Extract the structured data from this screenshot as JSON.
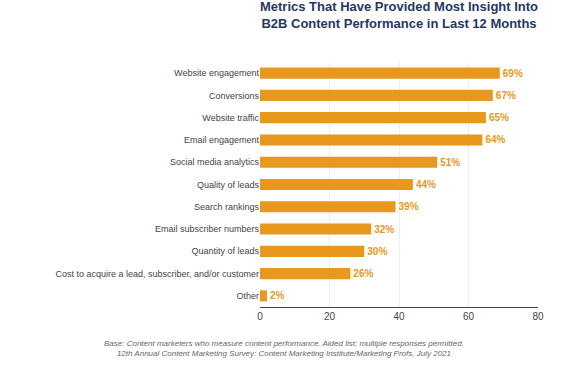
{
  "chart_data": {
    "type": "bar",
    "orientation": "horizontal",
    "title": "Metrics That Have Provided Most Insight Into\nB2B Content Performance in Last 12 Months",
    "categories": [
      "Other",
      "Cost to acquire a lead, subscriber, and/or customer",
      "Quantity of leads",
      "Email subscriber numbers",
      "Search rankings",
      "Quality of leads",
      "Social media analytics",
      "Email engagement",
      "Website traffic",
      "Conversions",
      "Website engagement"
    ],
    "values": [
      2,
      26,
      30,
      32,
      39,
      44,
      51,
      64,
      65,
      67,
      69
    ],
    "value_labels": [
      "2%",
      "26%",
      "30%",
      "32%",
      "39%",
      "44%",
      "51%",
      "64%",
      "65%",
      "67%",
      "69%"
    ],
    "data_labels": true,
    "color": "#E8981D",
    "xlim": [
      0,
      80
    ],
    "xticks": [
      0,
      20,
      40,
      60,
      80
    ],
    "grid": true,
    "annotations": [
      "Base: Content marketers who measure content performance. Aided list; multiple responses permitted.",
      "12th Annual Content Marketing Survey: Content Marketing Institute/Marketing Profs, July 2021"
    ]
  }
}
